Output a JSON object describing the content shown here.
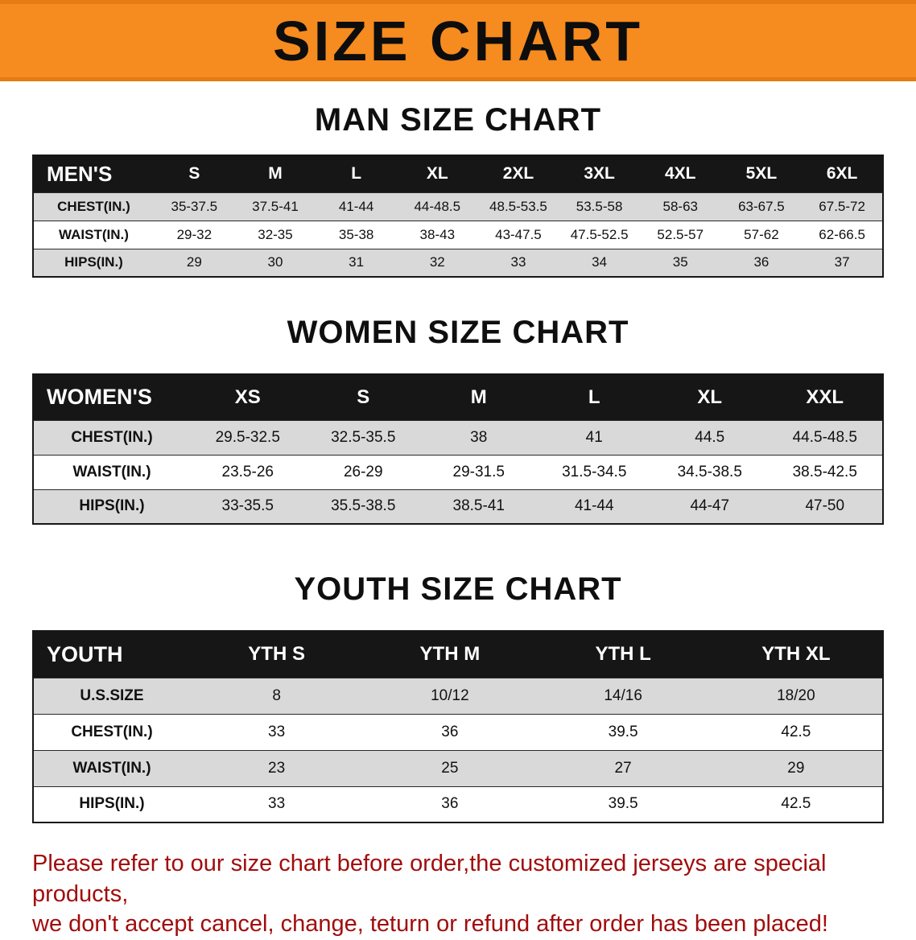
{
  "banner": {
    "title": "SIZE CHART",
    "bg_color": "#f68b1f",
    "text_color": "#0d0d0d"
  },
  "colors": {
    "table_header_bg": "#161616",
    "table_row_gray": "#d9d9d9",
    "disclaimer_red": "#a10d0d"
  },
  "tables": [
    {
      "heading": "MAN SIZE CHART",
      "label": "MEN'S",
      "columns": [
        "S",
        "M",
        "L",
        "XL",
        "2XL",
        "3XL",
        "4XL",
        "5XL",
        "6XL"
      ],
      "rows": [
        {
          "label": "CHEST(IN.)",
          "values": [
            "35-37.5",
            "37.5-41",
            "41-44",
            "44-48.5",
            "48.5-53.5",
            "53.5-58",
            "58-63",
            "63-67.5",
            "67.5-72"
          ]
        },
        {
          "label": "WAIST(IN.)",
          "values": [
            "29-32",
            "32-35",
            "35-38",
            "38-43",
            "43-47.5",
            "47.5-52.5",
            "52.5-57",
            "57-62",
            "62-66.5"
          ]
        },
        {
          "label": "HIPS(IN.)",
          "values": [
            "29",
            "30",
            "31",
            "32",
            "33",
            "34",
            "35",
            "36",
            "37"
          ]
        }
      ]
    },
    {
      "heading": "WOMEN SIZE CHART",
      "label": "WOMEN'S",
      "columns": [
        "XS",
        "S",
        "M",
        "L",
        "XL",
        "XXL"
      ],
      "rows": [
        {
          "label": "CHEST(IN.)",
          "values": [
            "29.5-32.5",
            "32.5-35.5",
            "38",
            "41",
            "44.5",
            "44.5-48.5"
          ]
        },
        {
          "label": "WAIST(IN.)",
          "values": [
            "23.5-26",
            "26-29",
            "29-31.5",
            "31.5-34.5",
            "34.5-38.5",
            "38.5-42.5"
          ]
        },
        {
          "label": "HIPS(IN.)",
          "values": [
            "33-35.5",
            "35.5-38.5",
            "38.5-41",
            "41-44",
            "44-47",
            "47-50"
          ]
        }
      ]
    },
    {
      "heading": "YOUTH SIZE CHART",
      "label": "YOUTH",
      "columns": [
        "YTH S",
        "YTH M",
        "YTH L",
        "YTH XL"
      ],
      "rows": [
        {
          "label": "U.S.SIZE",
          "values": [
            "8",
            "10/12",
            "14/16",
            "18/20"
          ]
        },
        {
          "label": "CHEST(IN.)",
          "values": [
            "33",
            "36",
            "39.5",
            "42.5"
          ]
        },
        {
          "label": "WAIST(IN.)",
          "values": [
            "23",
            "25",
            "27",
            "29"
          ]
        },
        {
          "label": "HIPS(IN.)",
          "values": [
            "33",
            "36",
            "39.5",
            "42.5"
          ]
        }
      ]
    }
  ],
  "disclaimer": {
    "line1": "Please refer to our size chart before order,the customized jerseys are special products,",
    "line2": "we don't accept cancel, change, teturn or refund after order has been placed!"
  }
}
